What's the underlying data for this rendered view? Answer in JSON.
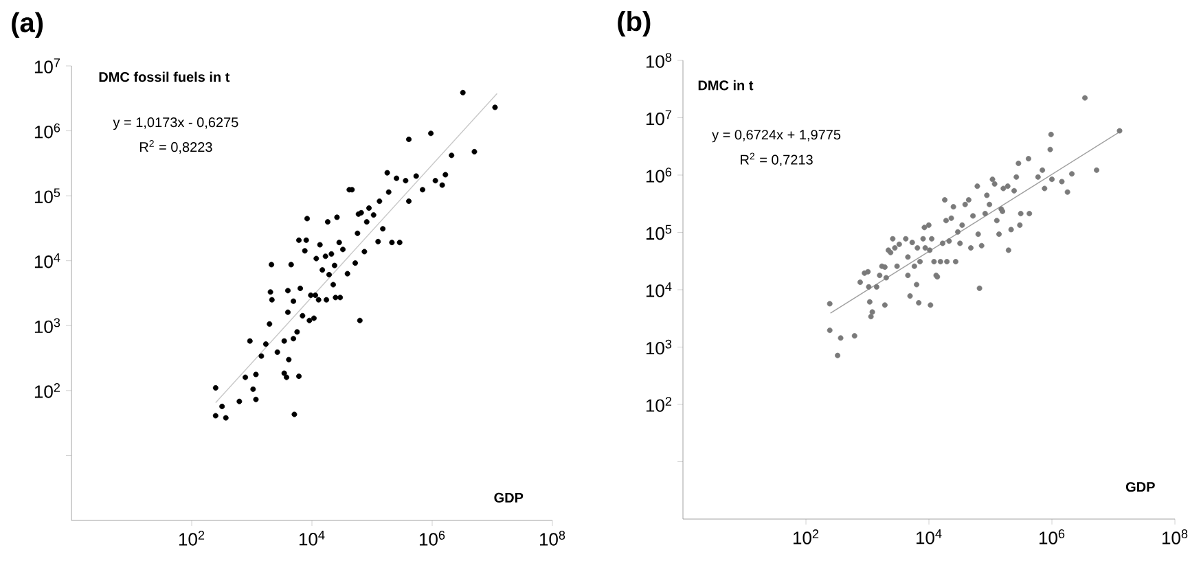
{
  "chart_data": [
    {
      "type": "scatter",
      "title": "(a)",
      "xlabel": "GDP",
      "ylabel": "DMC fossil fuels  in t",
      "annotations": [
        "y = 1,0173x - 0,6275",
        "R$^{2}$ = 0,8223"
      ],
      "log": "xy",
      "xlim": [
        1,
        100000000
      ],
      "ylim": [
        1,
        10000000
      ],
      "xticks": [
        {
          "value": 100,
          "label": "10$^{2}$"
        },
        {
          "value": 10000,
          "label": "10$^{4}$"
        },
        {
          "value": 1000000,
          "label": "10$^{6}$"
        },
        {
          "value": 100000000,
          "label": "10$^{8}$"
        }
      ],
      "yticks": [
        {
          "value": 10,
          "label": null
        },
        {
          "value": 100,
          "label": "10$^{2}$"
        },
        {
          "value": 1000,
          "label": "10$^{3}$"
        },
        {
          "value": 10000,
          "label": "10$^{4}$"
        },
        {
          "value": 100000,
          "label": "10$^{5}$"
        },
        {
          "value": 1000000,
          "label": "10$^{6}$"
        },
        {
          "value": 10000000,
          "label": "10$^{7}$"
        }
      ],
      "series": [
        {
          "color": "#000000",
          "marker": "circle",
          "x": [
            250,
            250,
            320,
            370,
            620,
            930,
            780,
            1050,
            1170,
            1170,
            1440,
            1710,
            1970,
            2120,
            2040,
            2160,
            2660,
            3460,
            3460,
            3780,
            3980,
            4120,
            3980,
            4510,
            4920,
            4920,
            5100,
            5660,
            6070,
            6070,
            6400,
            6980,
            7620,
            8040,
            8320,
            9080,
            9570,
            10800,
            11400,
            11800,
            12900,
            13600,
            14900,
            16800,
            17400,
            18300,
            19300,
            21100,
            22600,
            23800,
            24700,
            26100,
            28400,
            29500,
            32700,
            39000,
            41800,
            46400,
            52500,
            57300,
            59400,
            62700,
            66000,
            74600,
            81500,
            88900,
            106000,
            126000,
            133000,
            151000,
            179000,
            189000,
            214000,
            255000,
            288000,
            362000,
            409000,
            409000,
            542000,
            692000,
            951000,
            1130000,
            1470000,
            1660000,
            2100000,
            3240000,
            5040000,
            11100000
          ],
          "values": [
            110,
            41,
            57,
            38,
            68,
            580,
            160,
            105,
            177,
            73,
            340,
            520,
            1060,
            8700,
            3300,
            2500,
            390,
            580,
            185,
            160,
            1610,
            300,
            3460,
            8700,
            630,
            2380,
            43,
            800,
            166,
            20700,
            3750,
            1420,
            14200,
            20700,
            44500,
            1200,
            2940,
            1300,
            2940,
            10800,
            2500,
            17600,
            7200,
            11700,
            2500,
            39600,
            6100,
            12700,
            4280,
            8450,
            2710,
            46700,
            19100,
            2710,
            14900,
            6310,
            124000,
            124000,
            9190,
            26400,
            52200,
            1200,
            54800,
            13800,
            39600,
            64600,
            50600,
            19700,
            82400,
            31000,
            226000,
            114000,
            19100,
            186000,
            19100,
            171000,
            82400,
            740000,
            201000,
            124000,
            914000,
            171000,
            146000,
            211000,
            419000,
            3880000,
            477000,
            2300000
          ]
        },
        {
          "type": "line",
          "marker": "none",
          "color": "#c8c8c8",
          "x": [
            250,
            12000000
          ],
          "values": [
            65,
            3760000
          ]
        }
      ]
    },
    {
      "type": "scatter",
      "title": "(b)",
      "xlabel": "GDP",
      "ylabel": "DMC in t",
      "annotations": [
        "y = 0,6724x + 1,9775",
        "R$^{2}$ = 0,7213"
      ],
      "log": "xy",
      "xlim": [
        1,
        100000000
      ],
      "ylim": [
        1,
        100000000
      ],
      "xticks": [
        {
          "value": 100,
          "label": "10$^{2}$"
        },
        {
          "value": 10000,
          "label": "10$^{4}$"
        },
        {
          "value": 1000000,
          "label": "10$^{6}$"
        },
        {
          "value": 100000000,
          "label": "10$^{8}$"
        }
      ],
      "yticks": [
        {
          "value": 10,
          "label": null
        },
        {
          "value": 100,
          "label": "10$^{2}$"
        },
        {
          "value": 1000,
          "label": "10$^{3}$"
        },
        {
          "value": 10000,
          "label": "10$^{4}$"
        },
        {
          "value": 100000,
          "label": "10$^{5}$"
        },
        {
          "value": 1000000,
          "label": "10$^{6}$"
        },
        {
          "value": 10000000,
          "label": "10$^{7}$"
        },
        {
          "value": 100000000,
          "label": "10$^{8}$"
        }
      ],
      "series": [
        {
          "color": "#7a7a7a",
          "marker": "circle",
          "x": [
            244,
            244,
            327,
            367,
            617,
            762,
            896,
            1020,
            1050,
            1090,
            1140,
            1200,
            1410,
            1580,
            1720,
            1920,
            2020,
            1920,
            2190,
            2380,
            2580,
            2790,
            3030,
            3290,
            4200,
            4550,
            4550,
            4930,
            5350,
            5800,
            6300,
            6500,
            6830,
            7160,
            8040,
            8440,
            8710,
            9930,
            10300,
            10600,
            11100,
            12100,
            13100,
            13700,
            15400,
            16700,
            18100,
            19000,
            19600,
            21300,
            23100,
            25000,
            27200,
            29500,
            32000,
            34700,
            38800,
            44300,
            48000,
            52000,
            61200,
            63200,
            66400,
            71900,
            82000,
            87500,
            96400,
            108000,
            117000,
            127000,
            138000,
            150000,
            157000,
            162000,
            191000,
            197000,
            217000,
            243000,
            264000,
            286000,
            301000,
            311000,
            416000,
            430000,
            594000,
            700000,
            759000,
            938000,
            968000,
            1000000,
            1450000,
            1790000,
            2110000,
            3440000,
            5330000,
            12600000
          ],
          "values": [
            5700,
            1960,
            714,
            1440,
            1570,
            13500,
            19500,
            20600,
            11200,
            6140,
            3400,
            4090,
            11200,
            17800,
            25700,
            24800,
            16200,
            5400,
            48900,
            44600,
            77400,
            53600,
            25700,
            62100,
            77400,
            37200,
            17800,
            7780,
            66800,
            25700,
            12300,
            53600,
            5920,
            30900,
            77400,
            122000,
            53600,
            134000,
            48900,
            5400,
            77400,
            30900,
            17800,
            16800,
            30900,
            64400,
            369000,
            161000,
            30900,
            70600,
            177000,
            280000,
            30900,
            102000,
            64400,
            134000,
            307000,
            369000,
            53600,
            194000,
            640000,
            93100,
            10600,
            58700,
            213000,
            444000,
            307000,
            843000,
            701000,
            161000,
            93100,
            255000,
            233000,
            584000,
            640000,
            48900,
            112000,
            533000,
            925000,
            1600000,
            134000,
            213000,
            1930000,
            213000,
            925000,
            1220000,
            584000,
            2790000,
            5110000,
            843000,
            769000,
            505000,
            1050000,
            22200000,
            1220000,
            5920000
          ]
        },
        {
          "type": "line",
          "marker": "none",
          "color": "#a0a0a0",
          "x": [
            250,
            12600000
          ],
          "values": [
            3900,
            5650000
          ]
        }
      ]
    }
  ]
}
